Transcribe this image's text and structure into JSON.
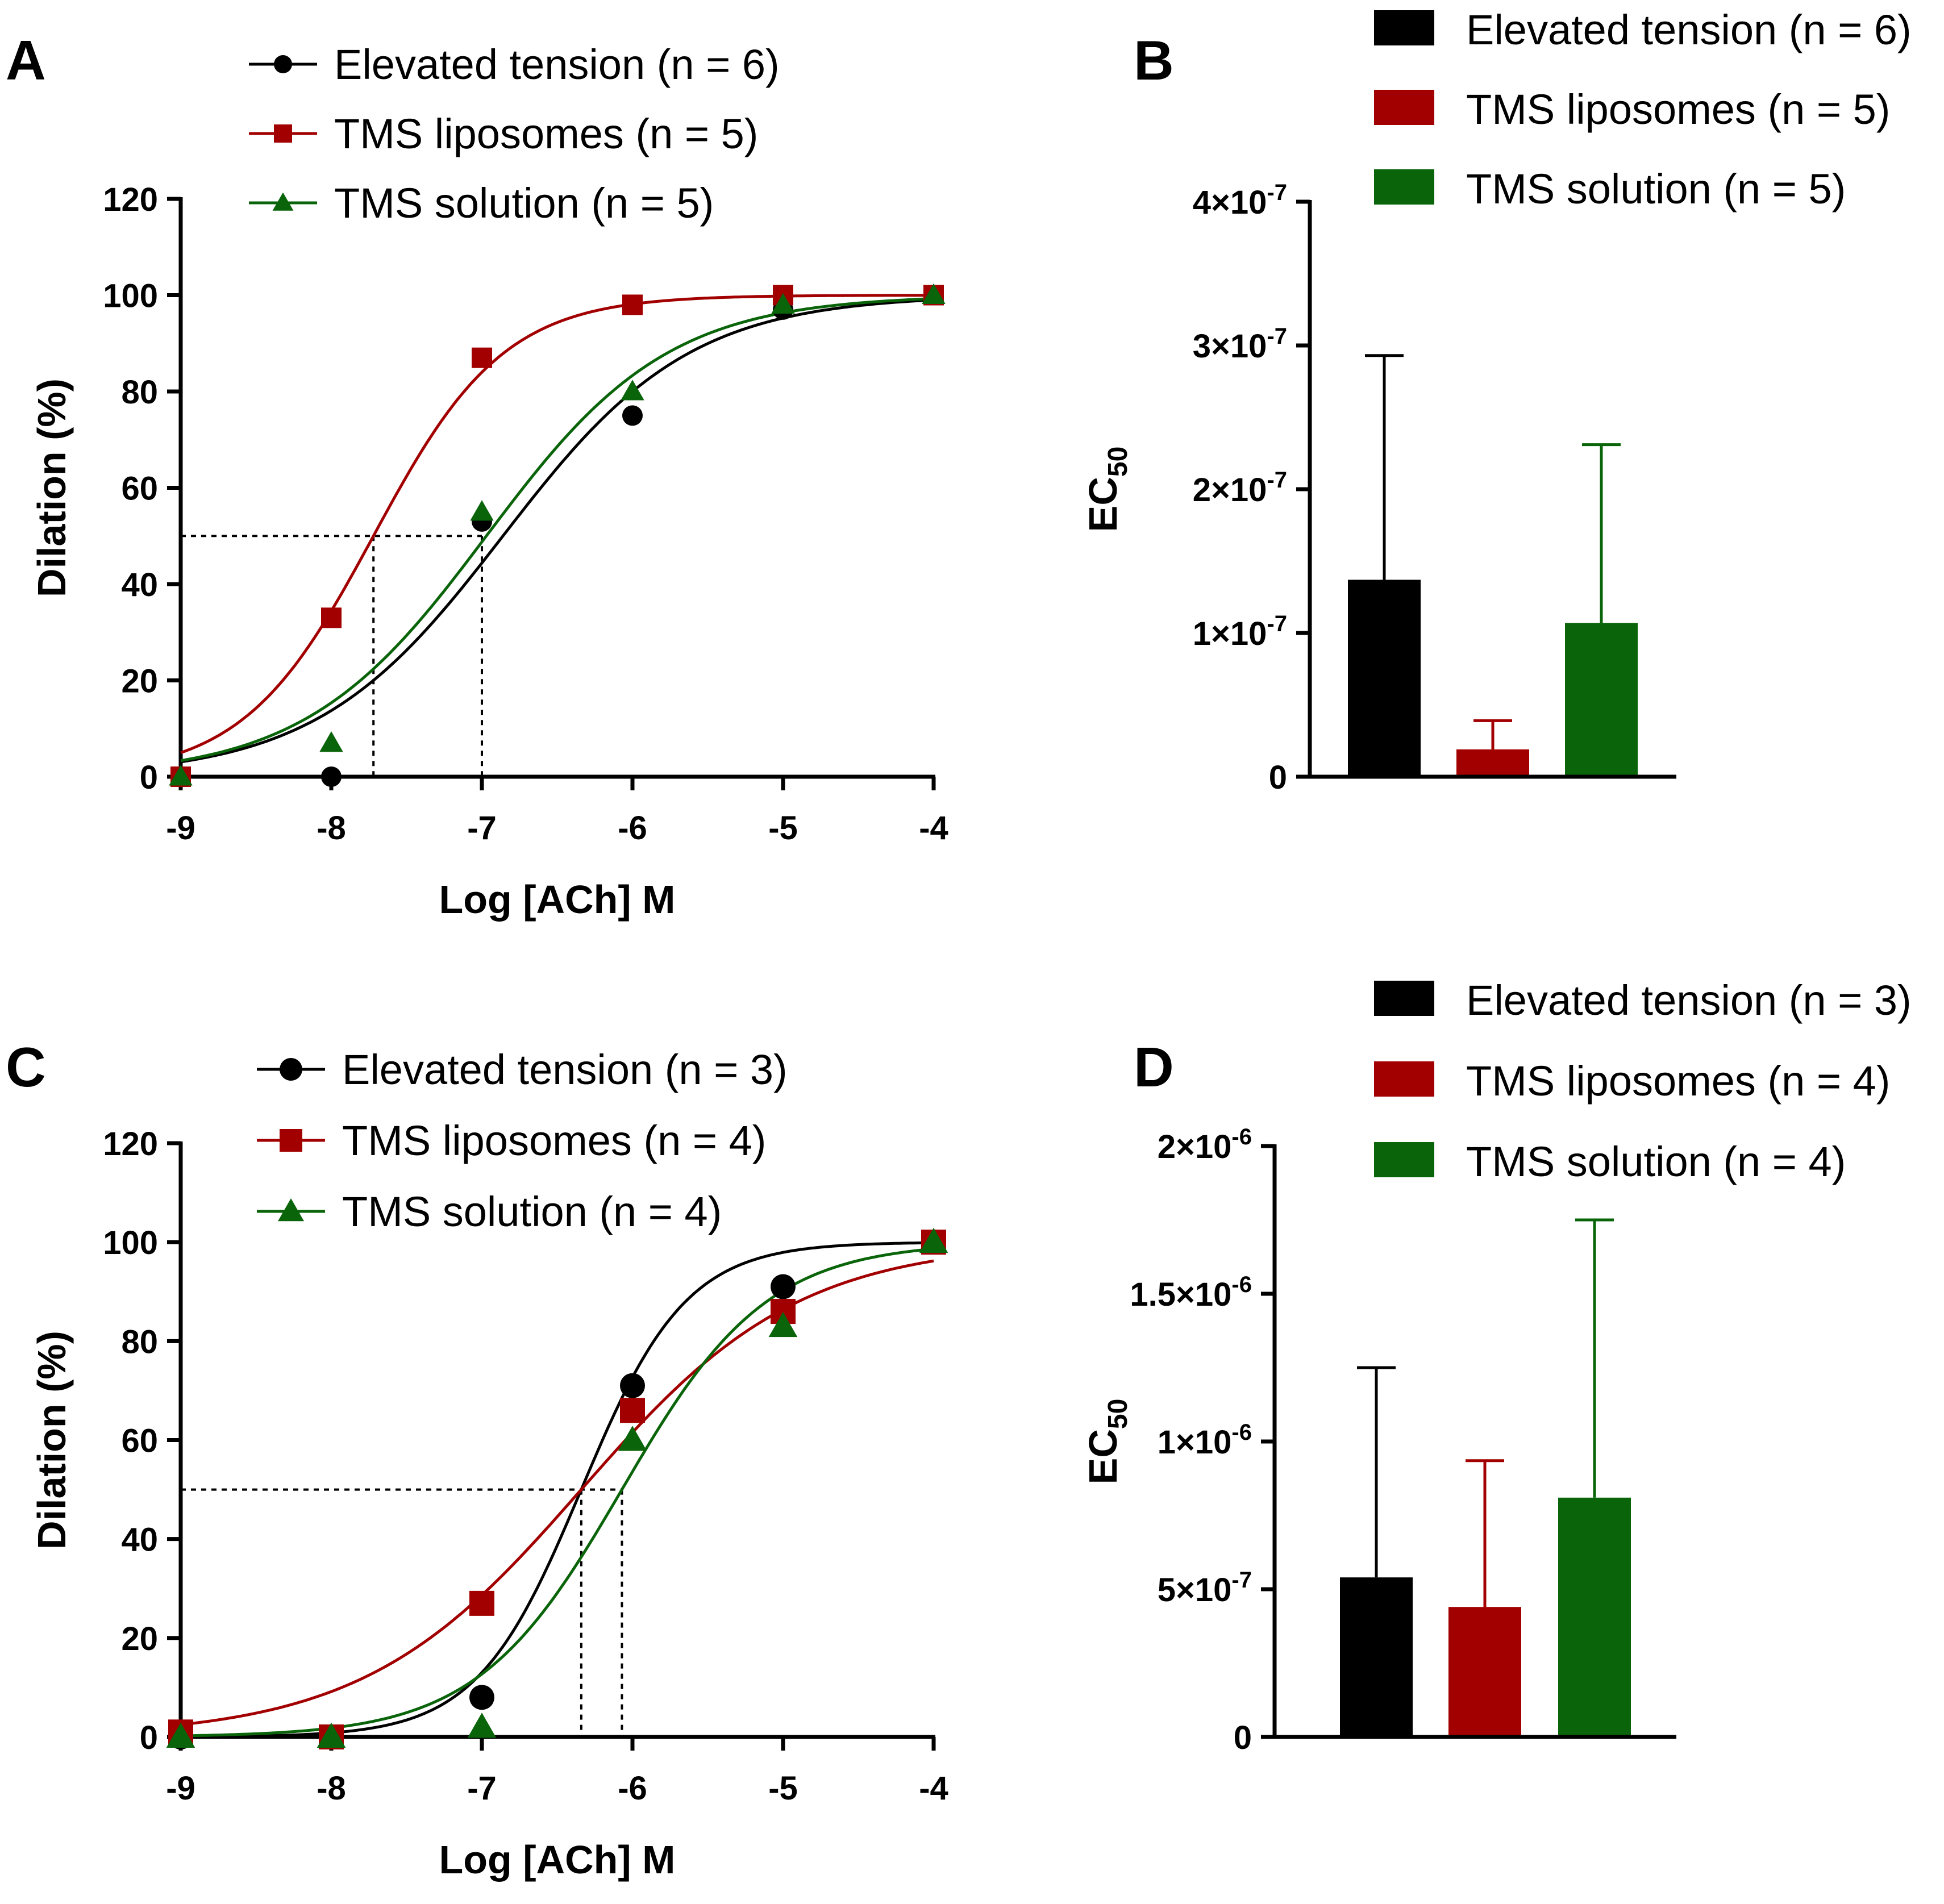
{
  "colors": {
    "elevated": "#000000",
    "liposomes": "#a20000",
    "solution": "#0a640a"
  },
  "chart_data": [
    {
      "panel": "A",
      "type": "line",
      "xlabel": "Log [ACh] M",
      "ylabel": "Dilation (%)",
      "xlim": [
        -9,
        -4
      ],
      "ylim": [
        0,
        120
      ],
      "xticks": [
        "-9",
        "-8",
        "-7",
        "-6",
        "-5",
        "-4"
      ],
      "yticks": [
        "0",
        "20",
        "40",
        "60",
        "80",
        "100",
        "120"
      ],
      "series": [
        {
          "name": "Elevated tension (n = 6)",
          "key": "elevated",
          "marker": "circle",
          "x": [
            -9,
            -8,
            -7,
            -6,
            -5,
            -4
          ],
          "y": [
            0,
            0,
            53,
            75,
            97,
            100
          ],
          "logEC50": -6.86,
          "hill": 0.7
        },
        {
          "name": "TMS liposomes (n = 5)",
          "key": "liposomes",
          "marker": "square",
          "x": [
            -9,
            -8,
            -7,
            -6,
            -5,
            -4
          ],
          "y": [
            0,
            33,
            87,
            98,
            100,
            100
          ],
          "logEC50": -7.72,
          "hill": 1.0
        },
        {
          "name": "TMS solution (n = 5)",
          "key": "solution",
          "marker": "triangle",
          "x": [
            -9,
            -8,
            -7,
            -6,
            -5,
            -4
          ],
          "y": [
            0,
            7,
            55,
            80,
            98,
            100
          ],
          "logEC50": -6.97,
          "hill": 0.72
        }
      ],
      "reference_lines": {
        "y": 50,
        "x": [
          -7.72,
          -7.0
        ]
      }
    },
    {
      "panel": "B",
      "type": "bar",
      "ylabel": "EC",
      "ylabel_sub": "50",
      "ylim": [
        0,
        4e-07
      ],
      "yticks": [
        {
          "value": 0,
          "base": "0",
          "exp": ""
        },
        {
          "value": 1e-07,
          "base": "1×10",
          "exp": "-7"
        },
        {
          "value": 2e-07,
          "base": "2×10",
          "exp": "-7"
        },
        {
          "value": 3e-07,
          "base": "3×10",
          "exp": "-7"
        },
        {
          "value": 4e-07,
          "base": "4×10",
          "exp": "-7"
        }
      ],
      "categories": [
        "Elevated tension (n = 6)",
        "TMS liposomes (n = 5)",
        "TMS solution (n = 5)"
      ],
      "keys": [
        "elevated",
        "liposomes",
        "solution"
      ],
      "values": [
        1.37e-07,
        1.9e-08,
        1.07e-07
      ],
      "errors": [
        1.56e-07,
        2e-08,
        1.24e-07
      ]
    },
    {
      "panel": "C",
      "type": "line",
      "xlabel": "Log [ACh] M",
      "ylabel": "Dilation (%)",
      "xlim": [
        -9,
        -4
      ],
      "ylim": [
        0,
        120
      ],
      "xticks": [
        "-9",
        "-8",
        "-7",
        "-6",
        "-5",
        "-4"
      ],
      "yticks": [
        "0",
        "20",
        "40",
        "60",
        "80",
        "100",
        "120"
      ],
      "series": [
        {
          "name": "Elevated tension (n = 3)",
          "key": "elevated",
          "marker": "circle",
          "x": [
            -9,
            -8,
            -7,
            -6,
            -5,
            -4
          ],
          "y": [
            0,
            0,
            8,
            71,
            91,
            100
          ],
          "logEC50": -6.34,
          "hill": 1.25
        },
        {
          "name": "TMS liposomes (n = 4)",
          "key": "liposomes",
          "marker": "square",
          "x": [
            -9,
            -8,
            -7,
            -6,
            -5,
            -4
          ],
          "y": [
            1,
            0,
            27,
            66,
            86,
            100
          ],
          "logEC50": -6.34,
          "hill": 0.6
        },
        {
          "name": "TMS solution (n = 4)",
          "key": "solution",
          "marker": "triangle",
          "x": [
            -9,
            -8,
            -7,
            -6,
            -5,
            -4
          ],
          "y": [
            0,
            0,
            2,
            60,
            83,
            100
          ],
          "logEC50": -6.07,
          "hill": 0.9
        }
      ],
      "reference_lines": {
        "y": 50,
        "x": [
          -6.34,
          -6.07
        ]
      }
    },
    {
      "panel": "D",
      "type": "bar",
      "ylabel": "EC",
      "ylabel_sub": "50",
      "ylim": [
        0,
        2e-06
      ],
      "yticks": [
        {
          "value": 0,
          "base": "0",
          "exp": ""
        },
        {
          "value": 5e-07,
          "base": "5×10",
          "exp": "-7"
        },
        {
          "value": 1e-06,
          "base": "1×10",
          "exp": "-6"
        },
        {
          "value": 1.5e-06,
          "base": "1.5×10",
          "exp": "-6"
        },
        {
          "value": 2e-06,
          "base": "2×10",
          "exp": "-6"
        }
      ],
      "categories": [
        "Elevated tension (n = 3)",
        "TMS liposomes (n = 4)",
        "TMS solution (n = 4)"
      ],
      "keys": [
        "elevated",
        "liposomes",
        "solution"
      ],
      "values": [
        5.4e-07,
        4.4e-07,
        8.1e-07
      ],
      "errors": [
        7.1e-07,
        4.95e-07,
        9.4e-07
      ]
    }
  ]
}
